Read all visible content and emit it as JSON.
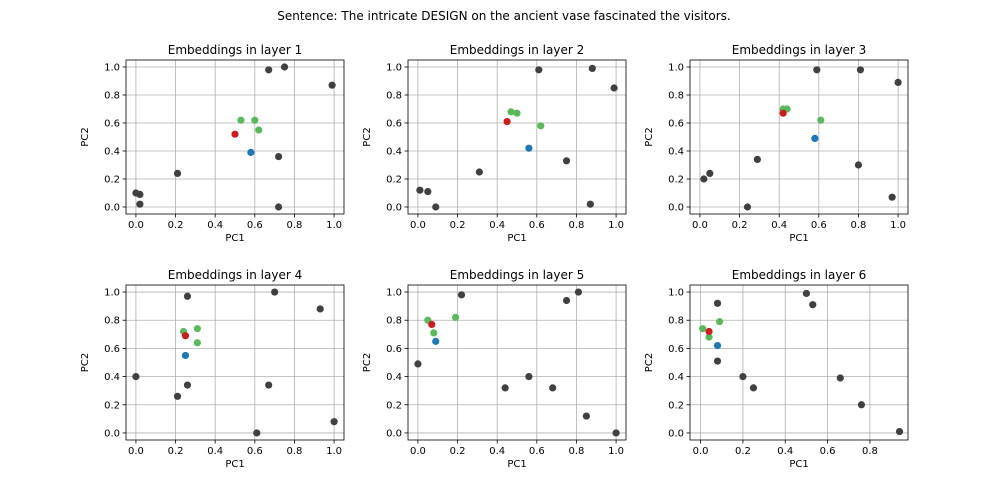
{
  "figure": {
    "suptitle": "Sentence: The intricate DESIGN on the ancient vase fascinated the visitors."
  },
  "colors": {
    "context": "#404040",
    "neighbor": "#5cb85c",
    "target": "#c81e1e",
    "query": "#1f77b4",
    "grid": "#b0b0b0"
  },
  "chart_data": [
    {
      "type": "scatter",
      "title": "Embeddings in layer 1",
      "xlabel": "PC1",
      "ylabel": "PC2",
      "xlim": [
        -0.05,
        1.05
      ],
      "ylim": [
        -0.05,
        1.05
      ],
      "xticks": [
        "0.0",
        "0.2",
        "0.4",
        "0.6",
        "0.8",
        "1.0"
      ],
      "yticks": [
        "0.0",
        "0.2",
        "0.4",
        "0.6",
        "0.8",
        "1.0"
      ],
      "grid": true,
      "series": [
        {
          "role": "context",
          "points": [
            [
              0.0,
              0.1
            ],
            [
              0.02,
              0.09
            ],
            [
              0.02,
              0.02
            ],
            [
              0.21,
              0.24
            ],
            [
              0.67,
              0.98
            ],
            [
              0.75,
              1.0
            ],
            [
              0.99,
              0.87
            ],
            [
              0.72,
              0.36
            ],
            [
              0.72,
              0.0
            ]
          ]
        },
        {
          "role": "neighbor",
          "points": [
            [
              0.53,
              0.62
            ],
            [
              0.6,
              0.62
            ],
            [
              0.62,
              0.55
            ]
          ]
        },
        {
          "role": "target",
          "points": [
            [
              0.5,
              0.52
            ]
          ]
        },
        {
          "role": "query",
          "points": [
            [
              0.58,
              0.39
            ]
          ]
        }
      ]
    },
    {
      "type": "scatter",
      "title": "Embeddings in layer 2",
      "xlabel": "PC1",
      "ylabel": "PC2",
      "xlim": [
        -0.05,
        1.05
      ],
      "ylim": [
        -0.05,
        1.05
      ],
      "xticks": [
        "0.0",
        "0.2",
        "0.4",
        "0.6",
        "0.8",
        "1.0"
      ],
      "yticks": [
        "0.0",
        "0.2",
        "0.4",
        "0.6",
        "0.8",
        "1.0"
      ],
      "grid": true,
      "series": [
        {
          "role": "context",
          "points": [
            [
              0.01,
              0.12
            ],
            [
              0.05,
              0.11
            ],
            [
              0.09,
              0.0
            ],
            [
              0.31,
              0.25
            ],
            [
              0.61,
              0.98
            ],
            [
              0.88,
              0.99
            ],
            [
              0.99,
              0.85
            ],
            [
              0.75,
              0.33
            ],
            [
              0.87,
              0.02
            ]
          ]
        },
        {
          "role": "neighbor",
          "points": [
            [
              0.47,
              0.68
            ],
            [
              0.5,
              0.67
            ],
            [
              0.62,
              0.58
            ]
          ]
        },
        {
          "role": "target",
          "points": [
            [
              0.45,
              0.61
            ]
          ]
        },
        {
          "role": "query",
          "points": [
            [
              0.56,
              0.42
            ]
          ]
        }
      ]
    },
    {
      "type": "scatter",
      "title": "Embeddings in layer 3",
      "xlabel": "PC1",
      "ylabel": "PC2",
      "xlim": [
        -0.05,
        1.05
      ],
      "ylim": [
        -0.05,
        1.05
      ],
      "xticks": [
        "0.0",
        "0.2",
        "0.4",
        "0.6",
        "0.8",
        "1.0"
      ],
      "yticks": [
        "0.0",
        "0.2",
        "0.4",
        "0.6",
        "0.8",
        "1.0"
      ],
      "grid": true,
      "series": [
        {
          "role": "context",
          "points": [
            [
              0.02,
              0.2
            ],
            [
              0.05,
              0.24
            ],
            [
              0.24,
              0.0
            ],
            [
              0.29,
              0.34
            ],
            [
              0.59,
              0.98
            ],
            [
              0.81,
              0.98
            ],
            [
              1.0,
              0.89
            ],
            [
              0.8,
              0.3
            ],
            [
              0.97,
              0.07
            ]
          ]
        },
        {
          "role": "neighbor",
          "points": [
            [
              0.42,
              0.7
            ],
            [
              0.44,
              0.7
            ],
            [
              0.61,
              0.62
            ]
          ]
        },
        {
          "role": "target",
          "points": [
            [
              0.42,
              0.67
            ]
          ]
        },
        {
          "role": "query",
          "points": [
            [
              0.58,
              0.49
            ]
          ]
        }
      ]
    },
    {
      "type": "scatter",
      "title": "Embeddings in layer 4",
      "xlabel": "PC1",
      "ylabel": "PC2",
      "xlim": [
        -0.05,
        1.05
      ],
      "ylim": [
        -0.05,
        1.05
      ],
      "xticks": [
        "0.0",
        "0.2",
        "0.4",
        "0.6",
        "0.8",
        "1.0"
      ],
      "yticks": [
        "0.0",
        "0.2",
        "0.4",
        "0.6",
        "0.8",
        "1.0"
      ],
      "grid": true,
      "series": [
        {
          "role": "context",
          "points": [
            [
              0.0,
              0.4
            ],
            [
              0.21,
              0.26
            ],
            [
              0.26,
              0.97
            ],
            [
              0.26,
              0.34
            ],
            [
              0.7,
              1.0
            ],
            [
              0.93,
              0.88
            ],
            [
              0.67,
              0.34
            ],
            [
              0.61,
              0.0
            ],
            [
              1.0,
              0.08
            ]
          ]
        },
        {
          "role": "neighbor",
          "points": [
            [
              0.24,
              0.72
            ],
            [
              0.31,
              0.74
            ],
            [
              0.31,
              0.64
            ]
          ]
        },
        {
          "role": "target",
          "points": [
            [
              0.25,
              0.69
            ]
          ]
        },
        {
          "role": "query",
          "points": [
            [
              0.25,
              0.55
            ]
          ]
        }
      ]
    },
    {
      "type": "scatter",
      "title": "Embeddings in layer 5",
      "xlabel": "PC1",
      "ylabel": "PC2",
      "xlim": [
        -0.05,
        1.05
      ],
      "ylim": [
        -0.05,
        1.05
      ],
      "xticks": [
        "0.0",
        "0.2",
        "0.4",
        "0.6",
        "0.8",
        "1.0"
      ],
      "yticks": [
        "0.0",
        "0.2",
        "0.4",
        "0.6",
        "0.8",
        "1.0"
      ],
      "grid": true,
      "series": [
        {
          "role": "context",
          "points": [
            [
              0.0,
              0.49
            ],
            [
              0.22,
              0.98
            ],
            [
              0.44,
              0.32
            ],
            [
              0.56,
              0.4
            ],
            [
              0.68,
              0.32
            ],
            [
              0.75,
              0.94
            ],
            [
              0.81,
              1.0
            ],
            [
              0.85,
              0.12
            ],
            [
              1.0,
              0.0
            ]
          ]
        },
        {
          "role": "neighbor",
          "points": [
            [
              0.05,
              0.8
            ],
            [
              0.08,
              0.71
            ],
            [
              0.19,
              0.82
            ]
          ]
        },
        {
          "role": "target",
          "points": [
            [
              0.07,
              0.77
            ]
          ]
        },
        {
          "role": "query",
          "points": [
            [
              0.09,
              0.65
            ]
          ]
        }
      ]
    },
    {
      "type": "scatter",
      "title": "Embeddings in layer 6",
      "xlabel": "PC1",
      "ylabel": "PC2",
      "xlim": [
        -0.05,
        0.98
      ],
      "ylim": [
        -0.05,
        1.05
      ],
      "xticks": [
        "0.0",
        "0.2",
        "0.4",
        "0.6",
        "0.8"
      ],
      "yticks": [
        "0.0",
        "0.2",
        "0.4",
        "0.6",
        "0.8",
        "1.0"
      ],
      "grid": true,
      "series": [
        {
          "role": "context",
          "points": [
            [
              0.08,
              0.92
            ],
            [
              0.08,
              0.51
            ],
            [
              0.2,
              0.4
            ],
            [
              0.25,
              0.32
            ],
            [
              0.5,
              0.99
            ],
            [
              0.53,
              0.91
            ],
            [
              0.66,
              0.39
            ],
            [
              0.76,
              0.2
            ],
            [
              0.94,
              0.01
            ]
          ]
        },
        {
          "role": "neighbor",
          "points": [
            [
              0.01,
              0.74
            ],
            [
              0.04,
              0.68
            ],
            [
              0.09,
              0.79
            ]
          ]
        },
        {
          "role": "target",
          "points": [
            [
              0.04,
              0.72
            ]
          ]
        },
        {
          "role": "query",
          "points": [
            [
              0.08,
              0.62
            ]
          ]
        }
      ]
    }
  ]
}
